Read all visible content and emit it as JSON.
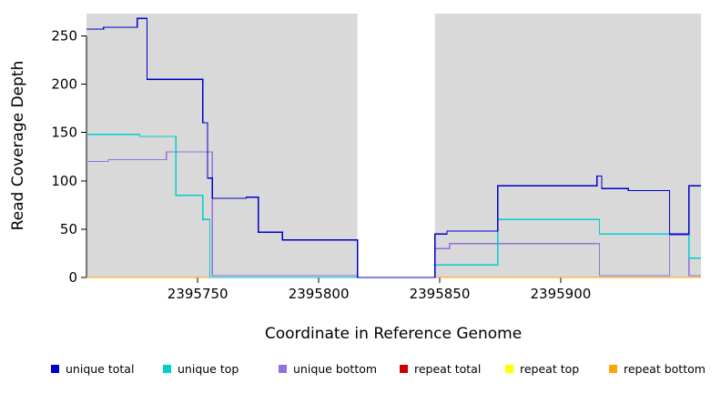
{
  "chart_data": {
    "type": "line",
    "subtype": "step-coverage",
    "title": "",
    "xlabel": "Coordinate in Reference Genome",
    "ylabel": "Read Coverage Depth",
    "xlim": [
      2395704,
      2395958
    ],
    "ylim": [
      0,
      273
    ],
    "grid": false,
    "legend_position": "bottom",
    "plot_bg_color": "#d9d9d9",
    "axis_color": "#000000",
    "gap_region": {
      "x_start": 2395816,
      "x_end": 2395848,
      "color": "#ffffff"
    },
    "x_ticks": {
      "values": [
        2395750,
        2395800,
        2395850,
        2395900
      ],
      "labels": [
        "2395750",
        "2395800",
        "2395850",
        "2395900"
      ]
    },
    "y_ticks": {
      "values": [
        0,
        50,
        100,
        150,
        200,
        250
      ],
      "labels": [
        "0",
        "50",
        "100",
        "150",
        "200",
        "250"
      ]
    },
    "series": [
      {
        "name": "unique total",
        "color": "#0000cc",
        "points": [
          [
            2395704,
            257
          ],
          [
            2395711,
            259
          ],
          [
            2395725,
            268
          ],
          [
            2395729,
            205
          ],
          [
            2395752,
            160
          ],
          [
            2395754,
            103
          ],
          [
            2395756,
            82
          ],
          [
            2395770,
            83
          ],
          [
            2395775,
            47
          ],
          [
            2395785,
            39
          ],
          [
            2395816,
            0
          ],
          [
            2395848,
            45
          ],
          [
            2395853,
            48
          ],
          [
            2395874,
            95
          ],
          [
            2395915,
            105
          ],
          [
            2395917,
            92
          ],
          [
            2395928,
            90
          ],
          [
            2395945,
            45
          ],
          [
            2395953,
            95
          ]
        ]
      },
      {
        "name": "unique top",
        "color": "#00cdcd",
        "points": [
          [
            2395704,
            148
          ],
          [
            2395726,
            146
          ],
          [
            2395741,
            85
          ],
          [
            2395752,
            60
          ],
          [
            2395755,
            0
          ],
          [
            2395848,
            13
          ],
          [
            2395874,
            60
          ],
          [
            2395916,
            45
          ],
          [
            2395953,
            20
          ]
        ]
      },
      {
        "name": "unique bottom",
        "color": "#9370db",
        "points": [
          [
            2395704,
            120
          ],
          [
            2395713,
            122
          ],
          [
            2395737,
            130
          ],
          [
            2395756,
            2
          ],
          [
            2395816,
            0
          ],
          [
            2395848,
            30
          ],
          [
            2395854,
            35
          ],
          [
            2395916,
            2
          ],
          [
            2395945,
            44
          ],
          [
            2395953,
            2
          ]
        ]
      },
      {
        "name": "repeat total",
        "color": "#cd0000",
        "points": [
          [
            2395704,
            0
          ]
        ]
      },
      {
        "name": "repeat top",
        "color": "#ffff00",
        "points": [
          [
            2395704,
            0
          ]
        ]
      },
      {
        "name": "repeat bottom",
        "color": "#ffa500",
        "points": [
          [
            2395704,
            0
          ]
        ]
      }
    ],
    "draw_order": [
      3,
      4,
      5,
      2,
      1,
      0
    ]
  },
  "legend": {
    "items": [
      {
        "label": "unique total",
        "color": "#0000cc"
      },
      {
        "label": "unique top",
        "color": "#00cdcd"
      },
      {
        "label": "unique bottom",
        "color": "#9370db"
      },
      {
        "label": "repeat total",
        "color": "#cd0000"
      },
      {
        "label": "repeat top",
        "color": "#ffff00"
      },
      {
        "label": "repeat bottom",
        "color": "#ffa500"
      }
    ]
  }
}
